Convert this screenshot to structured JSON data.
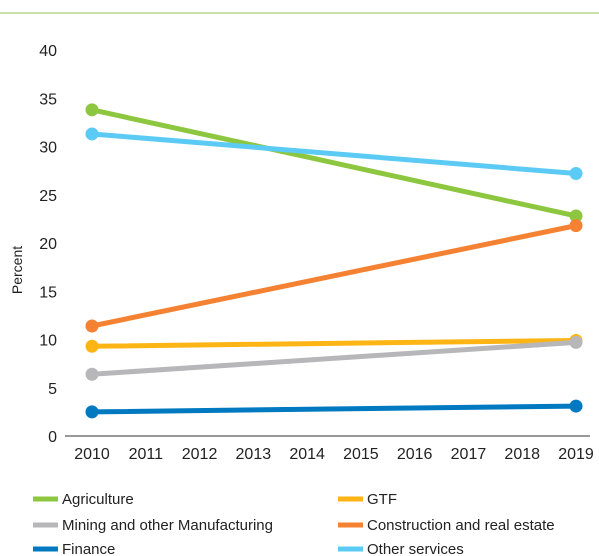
{
  "chart_data": {
    "type": "line",
    "title": "",
    "xlabel": "",
    "ylabel": "Percent",
    "x": [
      "2010",
      "2011",
      "2012",
      "2013",
      "2014",
      "2015",
      "2016",
      "2017",
      "2018",
      "2019"
    ],
    "yticks": [
      "0",
      "5",
      "10",
      "15",
      "20",
      "25",
      "30",
      "35",
      "40"
    ],
    "ylim": [
      0,
      40
    ],
    "grid": false,
    "legend_position": "bottom",
    "series": [
      {
        "name": "Agriculture",
        "color": "#8dc63f",
        "points": [
          {
            "x": "2010",
            "y": 33.8
          },
          {
            "x": "2019",
            "y": 22.8
          }
        ]
      },
      {
        "name": "GTF",
        "color": "#fdb515",
        "points": [
          {
            "x": "2010",
            "y": 9.3
          },
          {
            "x": "2019",
            "y": 9.9
          }
        ]
      },
      {
        "name": "Mining and other Manufacturing",
        "color": "#b7b7b9",
        "points": [
          {
            "x": "2010",
            "y": 6.4
          },
          {
            "x": "2019",
            "y": 9.7
          }
        ]
      },
      {
        "name": "Construction and real estate",
        "color": "#f58233",
        "points": [
          {
            "x": "2010",
            "y": 11.4
          },
          {
            "x": "2019",
            "y": 21.8
          }
        ]
      },
      {
        "name": "Finance",
        "color": "#0079c1",
        "points": [
          {
            "x": "2010",
            "y": 2.5
          },
          {
            "x": "2019",
            "y": 3.1
          }
        ]
      },
      {
        "name": "Other services",
        "color": "#5bcbf5",
        "points": [
          {
            "x": "2010",
            "y": 31.3
          },
          {
            "x": "2019",
            "y": 27.2
          }
        ]
      }
    ]
  }
}
